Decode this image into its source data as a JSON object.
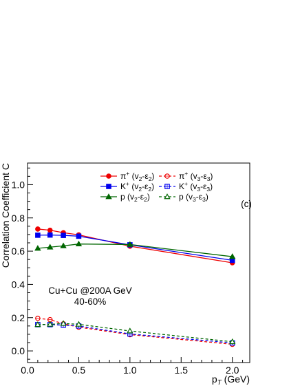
{
  "chart_data": {
    "type": "line",
    "panel_label": "(c)",
    "title": "",
    "xlabel": "p_T (GeV)",
    "xlabel_parts": {
      "main": "p",
      "sub": "T",
      "unit": " (GeV)"
    },
    "ylabel": "Correlation Coefficient  C",
    "xlim": [
      0,
      2.17
    ],
    "ylim": [
      -0.07,
      1.13
    ],
    "x_ticks": [
      0.0,
      0.5,
      1.0,
      1.5,
      2.0
    ],
    "x_tick_labels": [
      "0.0",
      "0.5",
      "1.0",
      "1.5",
      "2.0"
    ],
    "y_ticks": [
      0.0,
      0.2,
      0.4,
      0.6,
      0.8,
      1.0
    ],
    "y_tick_labels": [
      "0.0",
      "0.2",
      "0.4",
      "0.6",
      "0.8",
      "1.0"
    ],
    "grid": false,
    "legend_position": "top-right",
    "annotations": [
      "Cu+Cu @200A GeV",
      "40-60%"
    ],
    "series": [
      {
        "name": "π⁺ (v₂-ε₂)",
        "legend": {
          "particle": "π",
          "charge": "+",
          "harm": "2"
        },
        "color": "#ee0000",
        "marker": "circle",
        "filled": true,
        "dash": "solid",
        "x": [
          0.1,
          0.22,
          0.35,
          0.5,
          1.0,
          2.0
        ],
        "values": [
          0.733,
          0.726,
          0.711,
          0.698,
          0.63,
          0.53
        ]
      },
      {
        "name": "K⁺ (v₂-ε₂)",
        "legend": {
          "particle": "K",
          "charge": "+",
          "harm": "2"
        },
        "color": "#0000ee",
        "marker": "square",
        "filled": true,
        "dash": "solid",
        "x": [
          0.1,
          0.22,
          0.35,
          0.5,
          1.0,
          2.0
        ],
        "values": [
          0.696,
          0.697,
          0.695,
          0.69,
          0.638,
          0.545
        ]
      },
      {
        "name": "p (v₂-ε₂)",
        "legend": {
          "particle": "p",
          "charge": "",
          "harm": "2"
        },
        "color": "#006600",
        "marker": "triangle",
        "filled": true,
        "dash": "solid",
        "x": [
          0.1,
          0.22,
          0.35,
          0.5,
          1.0,
          2.0
        ],
        "values": [
          0.617,
          0.624,
          0.632,
          0.643,
          0.64,
          0.567
        ]
      },
      {
        "name": "π⁺ (v₃-ε₃)",
        "legend": {
          "particle": "π",
          "charge": "+",
          "harm": "3"
        },
        "color": "#ee0000",
        "marker": "circle",
        "filled": false,
        "dash": "dashed",
        "x": [
          0.1,
          0.22,
          0.35,
          0.5,
          1.0,
          2.0
        ],
        "values": [
          0.196,
          0.188,
          0.163,
          0.143,
          0.098,
          0.04
        ]
      },
      {
        "name": "K⁺ (v₃-ε₃)",
        "legend": {
          "particle": "K",
          "charge": "+",
          "harm": "3"
        },
        "color": "#0000ee",
        "marker": "square",
        "filled": false,
        "dash": "dashed",
        "x": [
          0.1,
          0.22,
          0.35,
          0.5,
          1.0,
          2.0
        ],
        "values": [
          0.158,
          0.158,
          0.155,
          0.15,
          0.102,
          0.048
        ]
      },
      {
        "name": "p (v₃-ε₃)",
        "legend": {
          "particle": "p",
          "charge": "",
          "harm": "3"
        },
        "color": "#006600",
        "marker": "triangle",
        "filled": false,
        "dash": "dashed",
        "x": [
          0.1,
          0.22,
          0.35,
          0.5,
          1.0,
          2.0
        ],
        "values": [
          0.158,
          0.16,
          0.165,
          0.16,
          0.12,
          0.055
        ]
      }
    ]
  }
}
